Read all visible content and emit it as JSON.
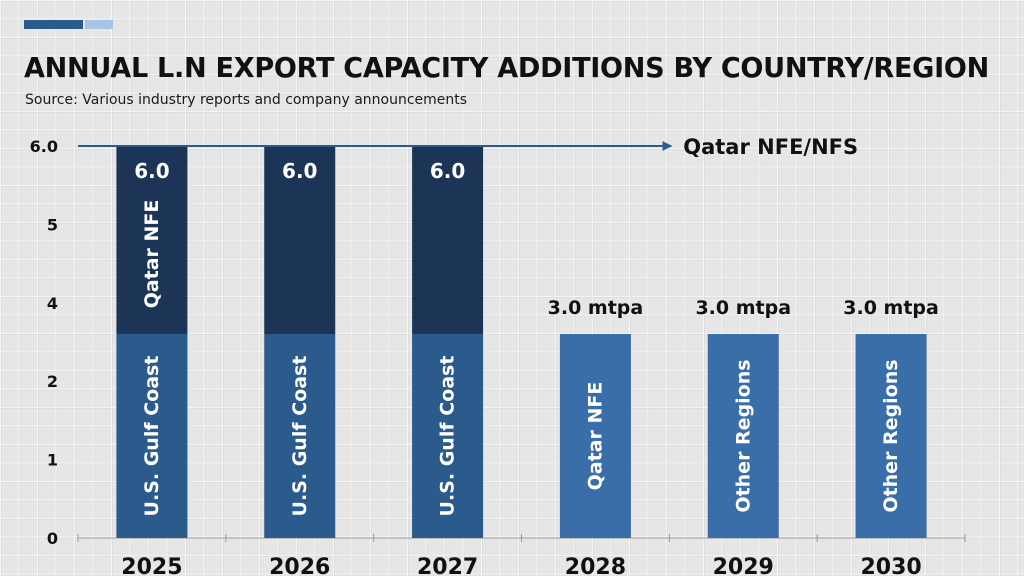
{
  "header": {
    "title": "ANNUAL L.N EXPORT CAPACITY ADDITIONS BY COUNTRY/REGION",
    "subtitle": "Source: Various industry reports and company announcements"
  },
  "colors": {
    "accent_dark": "#2b5a8c",
    "accent_light": "#a7c4e6",
    "qatar_dark": "#1c3557",
    "gulf_coast": "#2b5a8c",
    "single_bar": "#3a6ea8",
    "arrow": "#2d5a8e",
    "axis": "#9a9a9a"
  },
  "chart_data": {
    "type": "bar",
    "stacked": true,
    "title": "ANNUAL L.N EXPORT CAPACITY ADDITIONS BY COUNTRY/REGION",
    "subtitle": "Source: Various industry reports and company announcements",
    "xlabel": "",
    "ylabel": "",
    "ylim": [
      0,
      6
    ],
    "y_tick_labels": [
      "0",
      "1",
      "2",
      "4",
      "5",
      "6.0"
    ],
    "grid": true,
    "categories": [
      "2025",
      "2026",
      "2027",
      "2028",
      "2029",
      "2030"
    ],
    "bars": [
      {
        "category": "2025",
        "total_label": "6.0",
        "segments": [
          {
            "name": "U.S. Gulf Coast",
            "value": 3.0,
            "label": "U.S. Gulf Coast",
            "color_key": "gulf_coast"
          },
          {
            "name": "Qatar NFE",
            "value": 3.0,
            "label": "Qatar NFE",
            "color_key": "qatar_dark"
          }
        ]
      },
      {
        "category": "2026",
        "total_label": "6.0",
        "segments": [
          {
            "name": "U.S. Gulf Coast",
            "value": 3.0,
            "label": "U.S. Gulf Coast",
            "color_key": "gulf_coast"
          },
          {
            "name": "Qatar NFE",
            "value": 3.0,
            "label": "",
            "color_key": "qatar_dark"
          }
        ]
      },
      {
        "category": "2027",
        "total_label": "6.0",
        "segments": [
          {
            "name": "U.S. Gulf Coast",
            "value": 3.0,
            "label": "U.S. Gulf Coast",
            "color_key": "gulf_coast"
          },
          {
            "name": "Qatar NFE",
            "value": 3.0,
            "label": "",
            "color_key": "qatar_dark"
          }
        ]
      },
      {
        "category": "2028",
        "total_label": "3.0 mtpa",
        "segments": [
          {
            "name": "Qatar NFE",
            "value": 3.0,
            "label": "Qatar NFE",
            "color_key": "single_bar"
          }
        ]
      },
      {
        "category": "2029",
        "total_label": "3.0 mtpa",
        "segments": [
          {
            "name": "Other Regions",
            "value": 3.0,
            "label": "Other Regions",
            "color_key": "single_bar"
          }
        ]
      },
      {
        "category": "2030",
        "total_label": "3.0 mtpa",
        "segments": [
          {
            "name": "Other Regions",
            "value": 3.0,
            "label": "Other Regions",
            "color_key": "single_bar"
          }
        ]
      }
    ],
    "annotations": [
      {
        "type": "arrow",
        "at_value": 6.0,
        "from_category": "2025",
        "to_category": "2029",
        "label": "Qatar NFE/NFS"
      }
    ],
    "legend": "none"
  }
}
